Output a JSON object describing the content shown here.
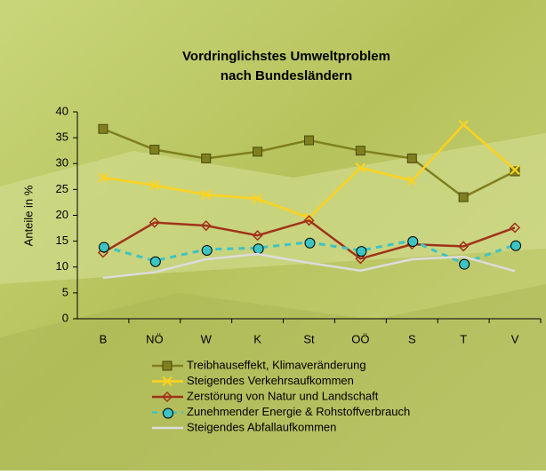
{
  "chart_data": {
    "type": "line",
    "title": [
      "Vordringlichstes Umweltproblem",
      "nach Bundesländern"
    ],
    "y_label": "Anteile in %",
    "categories": [
      "B",
      "NÖ",
      "W",
      "K",
      "St",
      "OÖ",
      "S",
      "T",
      "V"
    ],
    "ylim": [
      0,
      40
    ],
    "yticks": [
      0,
      5,
      10,
      15,
      20,
      25,
      30,
      35,
      40
    ],
    "series": [
      {
        "name": "Treibhauseffekt, Klimaveränderung",
        "color": "#7f7f1f",
        "marker": "square",
        "dashed": false,
        "values": [
          36.7,
          32.7,
          31,
          32.3,
          34.5,
          32.5,
          31,
          23.5,
          28.5
        ]
      },
      {
        "name": "Steigendes Verkehrsaufkommen",
        "color": "#ffd21e",
        "marker": "x",
        "dashed": false,
        "values": [
          27.3,
          25.8,
          24,
          23.2,
          19.5,
          29.2,
          26.7,
          37.5,
          28.8
        ]
      },
      {
        "name": "Zerstörung von Natur und Landschaft",
        "color": "#a0331a",
        "marker": "diamond",
        "dashed": false,
        "values": [
          12.8,
          18.6,
          18,
          16.1,
          19,
          11.6,
          14.4,
          14,
          17.6
        ]
      },
      {
        "name": "Zunehmender Energie & Rohstoffverbrauch",
        "color": "#3cc4c4",
        "marker": "circle",
        "dashed": true,
        "values": [
          14,
          11.2,
          13.4,
          13.7,
          14.8,
          13.2,
          15.1,
          10.7,
          14.3
        ]
      },
      {
        "name": "Steigendes Abfallaufkommen",
        "color": "#dcdcdc",
        "marker": "none",
        "dashed": false,
        "values": [
          7.9,
          9.0,
          11.5,
          12.5,
          10.8,
          9.3,
          11.5,
          12.0,
          9.2
        ]
      }
    ]
  }
}
